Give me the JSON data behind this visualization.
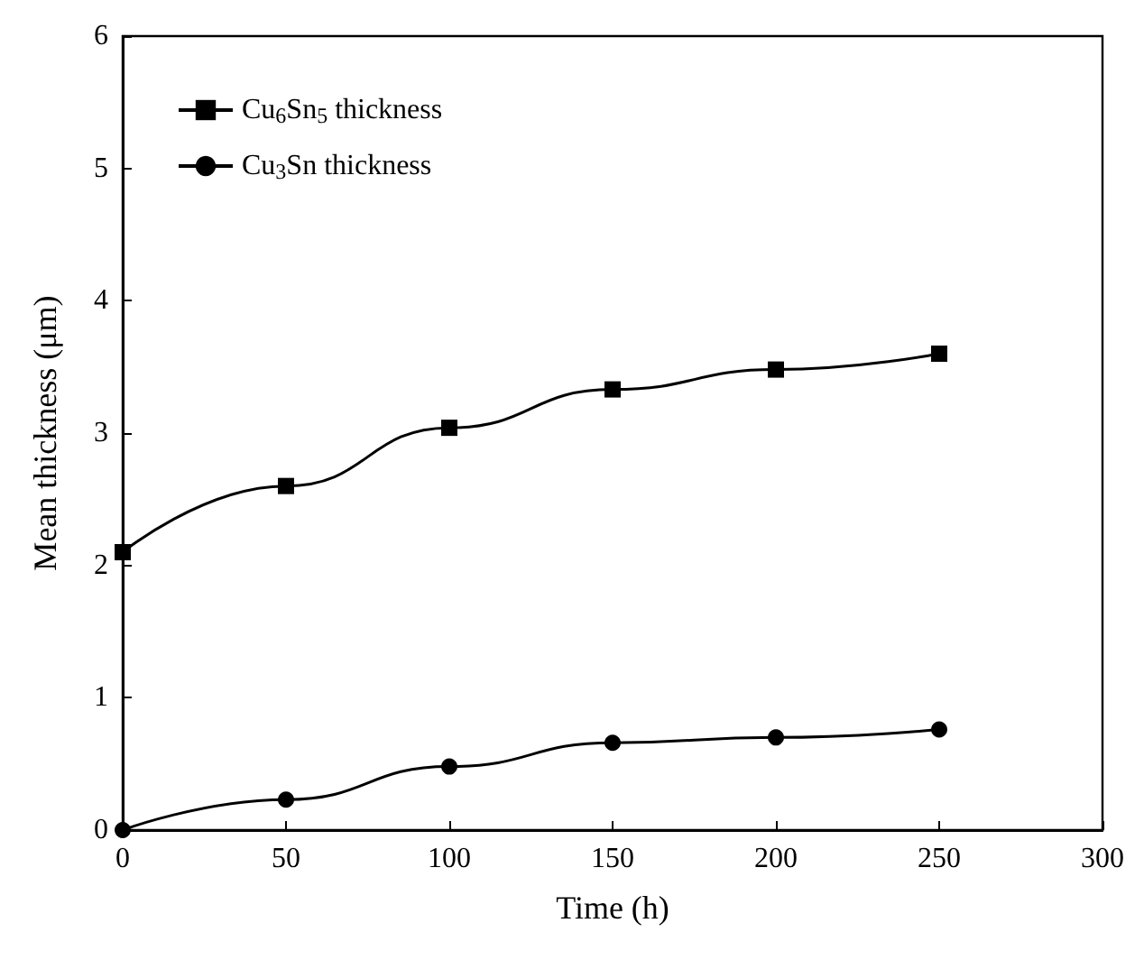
{
  "chart_data": {
    "type": "line",
    "xlabel": "Time (h)",
    "ylabel": "Mean thickness (μm)",
    "x": [
      0,
      50,
      100,
      150,
      200,
      250
    ],
    "series": [
      {
        "name": "Cu$_{6}$Sn$_{5}$ thickness",
        "color": "#000000",
        "marker": "square",
        "values": [
          2.1,
          2.6,
          3.04,
          3.33,
          3.48,
          3.6
        ]
      },
      {
        "name": "Cu$_{3}$Sn thickness",
        "color": "#000000",
        "marker": "circle",
        "values": [
          0,
          0.23,
          0.48,
          0.66,
          0.7,
          0.76
        ]
      }
    ],
    "xlim": [
      0,
      300
    ],
    "xticks": [
      0,
      50,
      100,
      150,
      200,
      250,
      300
    ],
    "ylim": [
      0,
      6
    ],
    "yticks": [
      0,
      1,
      2,
      3,
      4,
      5,
      6
    ],
    "grid": false,
    "legend": "top left",
    "line_style": "solid"
  }
}
